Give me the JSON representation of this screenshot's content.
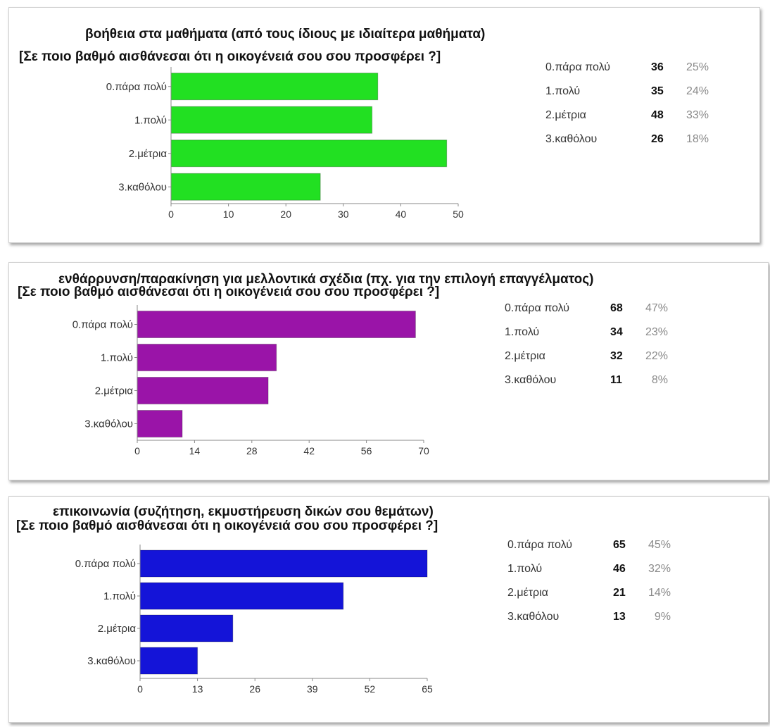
{
  "panels": [
    {
      "title_line1": "βοήθεια στα μαθήματα (από τους ίδιους με ιδιαίτερα μαθήματα)",
      "title_line2": "[Σε ποιο βαθμό αισθάνεσαι ότι η οικογένειά σου σου προσφέρει ?]",
      "stats": [
        {
          "label": "0.πάρα πολύ",
          "count": "36",
          "percent": "25%"
        },
        {
          "label": "1.πολύ",
          "count": "35",
          "percent": "24%"
        },
        {
          "label": "2.μέτρια",
          "count": "48",
          "percent": "33%"
        },
        {
          "label": "3.καθόλου",
          "count": "26",
          "percent": "18%"
        }
      ]
    },
    {
      "title_line1": "ενθάρρυνση/παρακίνηση για μελλοντικά σχέδια (πχ. για την επιλογή επαγγέλματος)",
      "title_line2": "[Σε ποιο βαθμό αισθάνεσαι ότι η οικογένειά σου σου προσφέρει ?]",
      "stats": [
        {
          "label": "0.πάρα πολύ",
          "count": "68",
          "percent": "47%"
        },
        {
          "label": "1.πολύ",
          "count": "34",
          "percent": "23%"
        },
        {
          "label": "2.μέτρια",
          "count": "32",
          "percent": "22%"
        },
        {
          "label": "3.καθόλου",
          "count": "11",
          "percent": "8%"
        }
      ]
    },
    {
      "title_line1": "επικοινωνία (συζήτηση, εκμυστήρευση δικών σου θεμάτων)",
      "title_line2": "[Σε ποιο βαθμό αισθάνεσαι ότι η οικογένειά σου σου προσφέρει ?]",
      "stats": [
        {
          "label": "0.πάρα πολύ",
          "count": "65",
          "percent": "45%"
        },
        {
          "label": "1.πολύ",
          "count": "46",
          "percent": "32%"
        },
        {
          "label": "2.μέτρια",
          "count": "21",
          "percent": "14%"
        },
        {
          "label": "3.καθόλου",
          "count": "13",
          "percent": "9%"
        }
      ]
    }
  ],
  "chart_data": [
    {
      "type": "bar",
      "orientation": "horizontal",
      "title": "βοήθεια στα μαθήματα (από τους ίδιους με ιδιαίτερα μαθήματα) [Σε ποιο βαθμό αισθάνεσαι ότι η οικογένειά σου σου προσφέρει ?]",
      "categories": [
        "0.πάρα πολύ",
        "1.πολύ",
        "2.μέτρια",
        "3.καθόλου"
      ],
      "values": [
        36,
        35,
        48,
        26
      ],
      "xlim": [
        0,
        50
      ],
      "xticks": [
        0,
        10,
        20,
        30,
        40,
        50
      ],
      "color": "#22e022",
      "grid": false,
      "legend": "none"
    },
    {
      "type": "bar",
      "orientation": "horizontal",
      "title": "ενθάρρυνση/παρακίνηση για μελλοντικά σχέδια (πχ. για την επιλογή επαγγέλματος) [Σε ποιο βαθμό αισθάνεσαι ότι η οικογένειά σου σου προσφέρει ?]",
      "categories": [
        "0.πάρα πολύ",
        "1.πολύ",
        "2.μέτρια",
        "3.καθόλου"
      ],
      "values": [
        68,
        34,
        32,
        11
      ],
      "xlim": [
        0,
        70
      ],
      "xticks": [
        0,
        14,
        28,
        42,
        56,
        70
      ],
      "color": "#9a14a8",
      "grid": false,
      "legend": "none"
    },
    {
      "type": "bar",
      "orientation": "horizontal",
      "title": "επικοινωνία (συζήτηση, εκμυστήρευση δικών σου θεμάτων) [Σε ποιο βαθμό αισθάνεσαι ότι η οικογένειά σου σου προσφέρει ?]",
      "categories": [
        "0.πάρα πολύ",
        "1.πολύ",
        "2.μέτρια",
        "3.καθόλου"
      ],
      "values": [
        65,
        46,
        21,
        13
      ],
      "xlim": [
        0,
        65
      ],
      "xticks": [
        0,
        13,
        26,
        39,
        52,
        65
      ],
      "color": "#1414d8",
      "grid": false,
      "legend": "none"
    }
  ]
}
